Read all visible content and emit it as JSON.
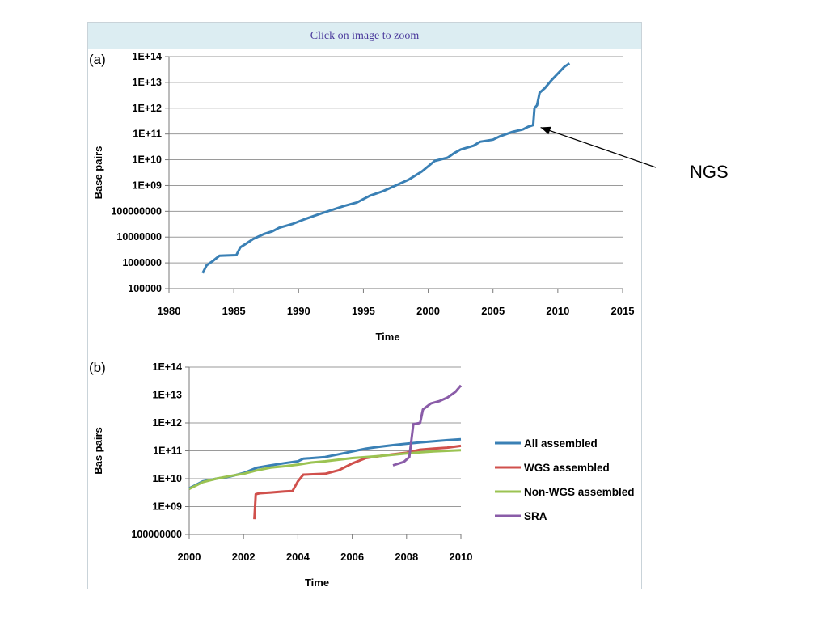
{
  "zoom_link": {
    "label": "Click on image to zoom"
  },
  "ngs_annotation": {
    "label": "NGS"
  },
  "chart_data": [
    {
      "panel_label": "(a)",
      "type": "line",
      "title": "",
      "xlabel": "Time",
      "ylabel": "Base pairs",
      "xlim": [
        1980,
        2015
      ],
      "ylim": [
        100000,
        100000000000000
      ],
      "y_scale": "log",
      "grid": true,
      "x_ticks": [
        1980,
        1985,
        1990,
        1995,
        2000,
        2005,
        2010,
        2015
      ],
      "x_tick_labels": [
        "1980",
        "1985",
        "1990",
        "1995",
        "2000",
        "2005",
        "2010",
        "2015"
      ],
      "y_ticks": [
        100000,
        1000000,
        10000000,
        100000000,
        1000000000,
        10000000000,
        100000000000,
        1000000000000,
        10000000000000,
        100000000000000
      ],
      "y_tick_labels": [
        "100000",
        "1000000",
        "10000000",
        "100000000",
        "1E+09",
        "1E+10",
        "1E+11",
        "1E+12",
        "1E+13",
        "1E+14"
      ],
      "series": [
        {
          "color": "#3a80b5",
          "points": [
            [
              1982.6,
              400000
            ],
            [
              1982.9,
              800000
            ],
            [
              1983.4,
              1200000
            ],
            [
              1983.9,
              1900000
            ],
            [
              1984.5,
              1950000
            ],
            [
              1985.2,
              2000000
            ],
            [
              1985.5,
              4000000
            ],
            [
              1986.0,
              5800000
            ],
            [
              1986.5,
              8500000
            ],
            [
              1987.3,
              13000000
            ],
            [
              1988.0,
              17000000
            ],
            [
              1988.5,
              23000000
            ],
            [
              1989.5,
              32000000
            ],
            [
              1990.5,
              50000000
            ],
            [
              1991.5,
              75000000
            ],
            [
              1992.5,
              110000000
            ],
            [
              1993.5,
              160000000
            ],
            [
              1994.5,
              220000000
            ],
            [
              1995.5,
              400000000
            ],
            [
              1996.5,
              600000000
            ],
            [
              1997.5,
              1000000000
            ],
            [
              1998.5,
              1700000000
            ],
            [
              1999.5,
              3500000000
            ],
            [
              2000.5,
              9000000000
            ],
            [
              2001.5,
              12000000000
            ],
            [
              2002.0,
              18000000000
            ],
            [
              2002.5,
              25000000000
            ],
            [
              2003.5,
              35000000000
            ],
            [
              2004.0,
              50000000000
            ],
            [
              2005.0,
              60000000000
            ],
            [
              2005.5,
              80000000000
            ],
            [
              2006.5,
              120000000000
            ],
            [
              2007.3,
              150000000000
            ],
            [
              2007.7,
              190000000000
            ],
            [
              2008.1,
              220000000000
            ],
            [
              2008.2,
              1000000000000
            ],
            [
              2008.4,
              1300000000000
            ],
            [
              2008.6,
              4000000000000
            ],
            [
              2009.0,
              6000000000000
            ],
            [
              2009.5,
              12000000000000
            ],
            [
              2010.0,
              22000000000000
            ],
            [
              2010.5,
              40000000000000
            ],
            [
              2010.9,
              55000000000000
            ]
          ]
        }
      ],
      "annotation": {
        "text": "NGS",
        "target": [
          2008.3,
          180000000000
        ]
      }
    },
    {
      "panel_label": "(b)",
      "type": "line",
      "title": "",
      "xlabel": "Time",
      "ylabel": "Bas pairs",
      "xlim": [
        2000,
        2010
      ],
      "ylim": [
        100000000,
        100000000000000
      ],
      "y_scale": "log",
      "grid": true,
      "legend_position": "right",
      "x_ticks": [
        2000,
        2002,
        2004,
        2006,
        2008,
        2010
      ],
      "x_tick_labels": [
        "2000",
        "2002",
        "2004",
        "2006",
        "2008",
        "2010"
      ],
      "y_ticks": [
        100000000,
        1000000000,
        10000000000,
        100000000000,
        1000000000000,
        10000000000000,
        100000000000000
      ],
      "y_tick_labels": [
        "100000000",
        "1E+09",
        "1E+10",
        "1E+11",
        "1E+12",
        "1E+13",
        "1E+14"
      ],
      "series": [
        {
          "name": "All assembled",
          "color": "#3a80b5",
          "points": [
            [
              2000.0,
              4500000000
            ],
            [
              2000.5,
              8000000000
            ],
            [
              2001.0,
              10000000000
            ],
            [
              2001.5,
              12000000000
            ],
            [
              2002.0,
              16000000000
            ],
            [
              2002.5,
              25000000000
            ],
            [
              2003.0,
              30000000000
            ],
            [
              2003.5,
              36000000000
            ],
            [
              2004.0,
              42000000000
            ],
            [
              2004.2,
              52000000000
            ],
            [
              2005.0,
              60000000000
            ],
            [
              2005.5,
              75000000000
            ],
            [
              2006.0,
              95000000000
            ],
            [
              2006.5,
              120000000000
            ],
            [
              2007.0,
              140000000000
            ],
            [
              2007.5,
              160000000000
            ],
            [
              2008.0,
              180000000000
            ],
            [
              2008.5,
              200000000000
            ],
            [
              2009.0,
              220000000000
            ],
            [
              2009.5,
              240000000000
            ],
            [
              2010.0,
              260000000000
            ]
          ]
        },
        {
          "name": "WGS assembled",
          "color": "#d0504c",
          "points": [
            [
              2002.4,
              350000000
            ],
            [
              2002.45,
              2800000000
            ],
            [
              2002.6,
              3000000000
            ],
            [
              2003.0,
              3200000000
            ],
            [
              2003.5,
              3500000000
            ],
            [
              2003.8,
              3600000000
            ],
            [
              2004.0,
              8000000000
            ],
            [
              2004.2,
              14000000000
            ],
            [
              2005.0,
              15000000000
            ],
            [
              2005.5,
              20000000000
            ],
            [
              2006.0,
              35000000000
            ],
            [
              2006.5,
              55000000000
            ],
            [
              2007.0,
              65000000000
            ],
            [
              2007.5,
              75000000000
            ],
            [
              2008.0,
              85000000000
            ],
            [
              2008.5,
              110000000000
            ],
            [
              2009.0,
              120000000000
            ],
            [
              2009.5,
              130000000000
            ],
            [
              2010.0,
              150000000000
            ]
          ]
        },
        {
          "name": "Non-WGS assembled",
          "color": "#9bc352",
          "points": [
            [
              2000.0,
              4300000000
            ],
            [
              2000.5,
              7500000000
            ],
            [
              2001.0,
              10000000000
            ],
            [
              2001.5,
              12500000000
            ],
            [
              2002.0,
              15000000000
            ],
            [
              2002.5,
              20000000000
            ],
            [
              2003.0,
              25000000000
            ],
            [
              2003.5,
              28000000000
            ],
            [
              2004.0,
              32000000000
            ],
            [
              2004.5,
              38000000000
            ],
            [
              2005.0,
              42000000000
            ],
            [
              2005.5,
              48000000000
            ],
            [
              2006.0,
              55000000000
            ],
            [
              2006.5,
              60000000000
            ],
            [
              2007.0,
              65000000000
            ],
            [
              2007.5,
              72000000000
            ],
            [
              2008.0,
              80000000000
            ],
            [
              2008.5,
              88000000000
            ],
            [
              2009.0,
              95000000000
            ],
            [
              2009.5,
              100000000000
            ],
            [
              2010.0,
              105000000000
            ]
          ]
        },
        {
          "name": "SRA",
          "color": "#8a5ca8",
          "points": [
            [
              2007.5,
              30000000000
            ],
            [
              2007.9,
              40000000000
            ],
            [
              2008.1,
              60000000000
            ],
            [
              2008.25,
              900000000000
            ],
            [
              2008.5,
              1000000000000
            ],
            [
              2008.6,
              3000000000000
            ],
            [
              2008.9,
              5000000000000
            ],
            [
              2009.2,
              6000000000000
            ],
            [
              2009.5,
              8000000000000
            ],
            [
              2009.8,
              13000000000000
            ],
            [
              2010.0,
              22000000000000
            ]
          ]
        }
      ]
    }
  ]
}
